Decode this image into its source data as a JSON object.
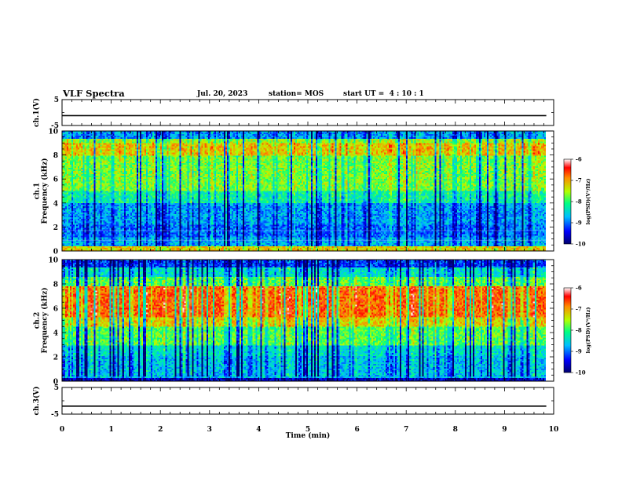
{
  "header": {
    "title": "VLF Spectra",
    "date": "Jul. 20, 2023",
    "station": "station= MOS",
    "start": "start UT =  4 : 10 : 1"
  },
  "chart_data": [
    {
      "type": "line",
      "panel": "ch1-waveform",
      "ylabel": "ch.1(V)",
      "ylim": [
        -5,
        5
      ],
      "yticks": [
        "5",
        "-5"
      ],
      "x": [
        0,
        9.85
      ],
      "y": [
        -1.2,
        -1.2
      ]
    },
    {
      "type": "heatmap",
      "panel": "ch1-spectrogram",
      "ylabel": "ch.1\nFrequency (kHz)",
      "ylim": [
        0,
        10
      ],
      "yticks": [
        "0",
        "2",
        "4",
        "6",
        "8",
        "10"
      ],
      "xlim": [
        0,
        10
      ],
      "data_end_min": 9.85,
      "colorbar": {
        "label": "log(PSD)(V²/Hz)",
        "range": [
          -10,
          -6
        ],
        "ticks": [
          "-6",
          "-7",
          "-8",
          "-9",
          "-10"
        ]
      }
    },
    {
      "type": "heatmap",
      "panel": "ch2-spectrogram",
      "ylabel": "ch.2\nFrequency (kHz)",
      "ylim": [
        0,
        10
      ],
      "yticks": [
        "0",
        "2",
        "4",
        "6",
        "8",
        "10"
      ],
      "xlim": [
        0,
        10
      ],
      "data_end_min": 9.85,
      "colorbar": {
        "label": "log(PSD)(V²/Hz)",
        "range": [
          -10,
          -6
        ],
        "ticks": [
          "-6",
          "-7",
          "-8",
          "-9",
          "-10"
        ]
      }
    },
    {
      "type": "line",
      "panel": "ch3-waveform",
      "ylabel": "ch.3(V)",
      "ylim": [
        -5,
        5
      ],
      "yticks": [
        "5",
        "-5"
      ],
      "x": [
        0,
        9.85
      ],
      "y": [
        -2,
        -2
      ]
    }
  ],
  "xaxis": {
    "label": "Time (min)",
    "ticks": [
      "0",
      "1",
      "2",
      "3",
      "4",
      "5",
      "6",
      "7",
      "8",
      "9",
      "10"
    ],
    "xlim": [
      0,
      10
    ]
  },
  "colors": {
    "scale": [
      "#000070",
      "#0000ff",
      "#00c8ff",
      "#00ff80",
      "#c8ff00",
      "#ff8000",
      "#ff0000",
      "#ffffff"
    ]
  }
}
